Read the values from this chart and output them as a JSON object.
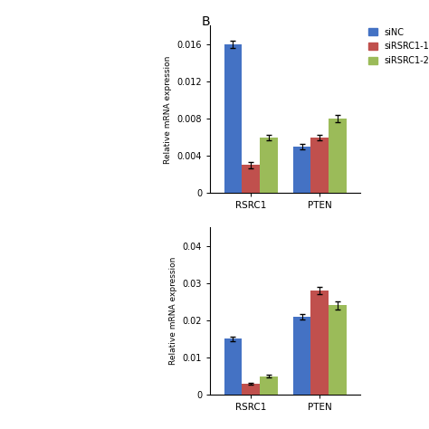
{
  "chart1": {
    "ylabel": "Relative mRNA expression",
    "groups": [
      "RSRC1",
      "PTEN"
    ],
    "series": [
      {
        "label": "siNC",
        "color": "#4472C4",
        "values": [
          0.016,
          0.005
        ]
      },
      {
        "label": "siRSRC1-1",
        "color": "#C0504D",
        "values": [
          0.003,
          0.006
        ]
      },
      {
        "label": "siRSRC1-2",
        "color": "#9BBB59",
        "values": [
          0.006,
          0.008
        ]
      }
    ],
    "errors": [
      [
        0.0004,
        0.0003
      ],
      [
        0.0003,
        0.0003
      ],
      [
        0.0003,
        0.0004
      ]
    ],
    "ylim": [
      0,
      0.018
    ],
    "yticks": [
      0,
      0.004,
      0.008,
      0.012,
      0.016
    ],
    "yticklabels": [
      "0",
      "0.004",
      "0.008",
      "0.012",
      "0.016"
    ]
  },
  "chart2": {
    "ylabel": "Relative mRNA expression",
    "groups": [
      "RSRC1",
      "PTEN"
    ],
    "series": [
      {
        "label": "siNC",
        "color": "#4472C4",
        "values": [
          0.015,
          0.021
        ]
      },
      {
        "label": "siRSRC1-1",
        "color": "#C0504D",
        "values": [
          0.003,
          0.028
        ]
      },
      {
        "label": "siRSRC1-2",
        "color": "#9BBB59",
        "values": [
          0.005,
          0.024
        ]
      }
    ],
    "errors": [
      [
        0.0005,
        0.0008
      ],
      [
        0.0003,
        0.001
      ],
      [
        0.0004,
        0.001
      ]
    ],
    "ylim": [
      0,
      0.045
    ],
    "yticks": [
      0,
      0.01,
      0.02,
      0.03,
      0.04
    ],
    "yticklabels": [
      "0",
      "0.01",
      "0.02",
      "0.03",
      "0.04"
    ]
  },
  "bar_width": 0.22,
  "legend_labels": [
    "siNC",
    "siRSRC1-1",
    "siRSRC1-2"
  ],
  "legend_colors": [
    "#4472C4",
    "#C0504D",
    "#9BBB59"
  ],
  "bg_color": "#f0f0f0"
}
